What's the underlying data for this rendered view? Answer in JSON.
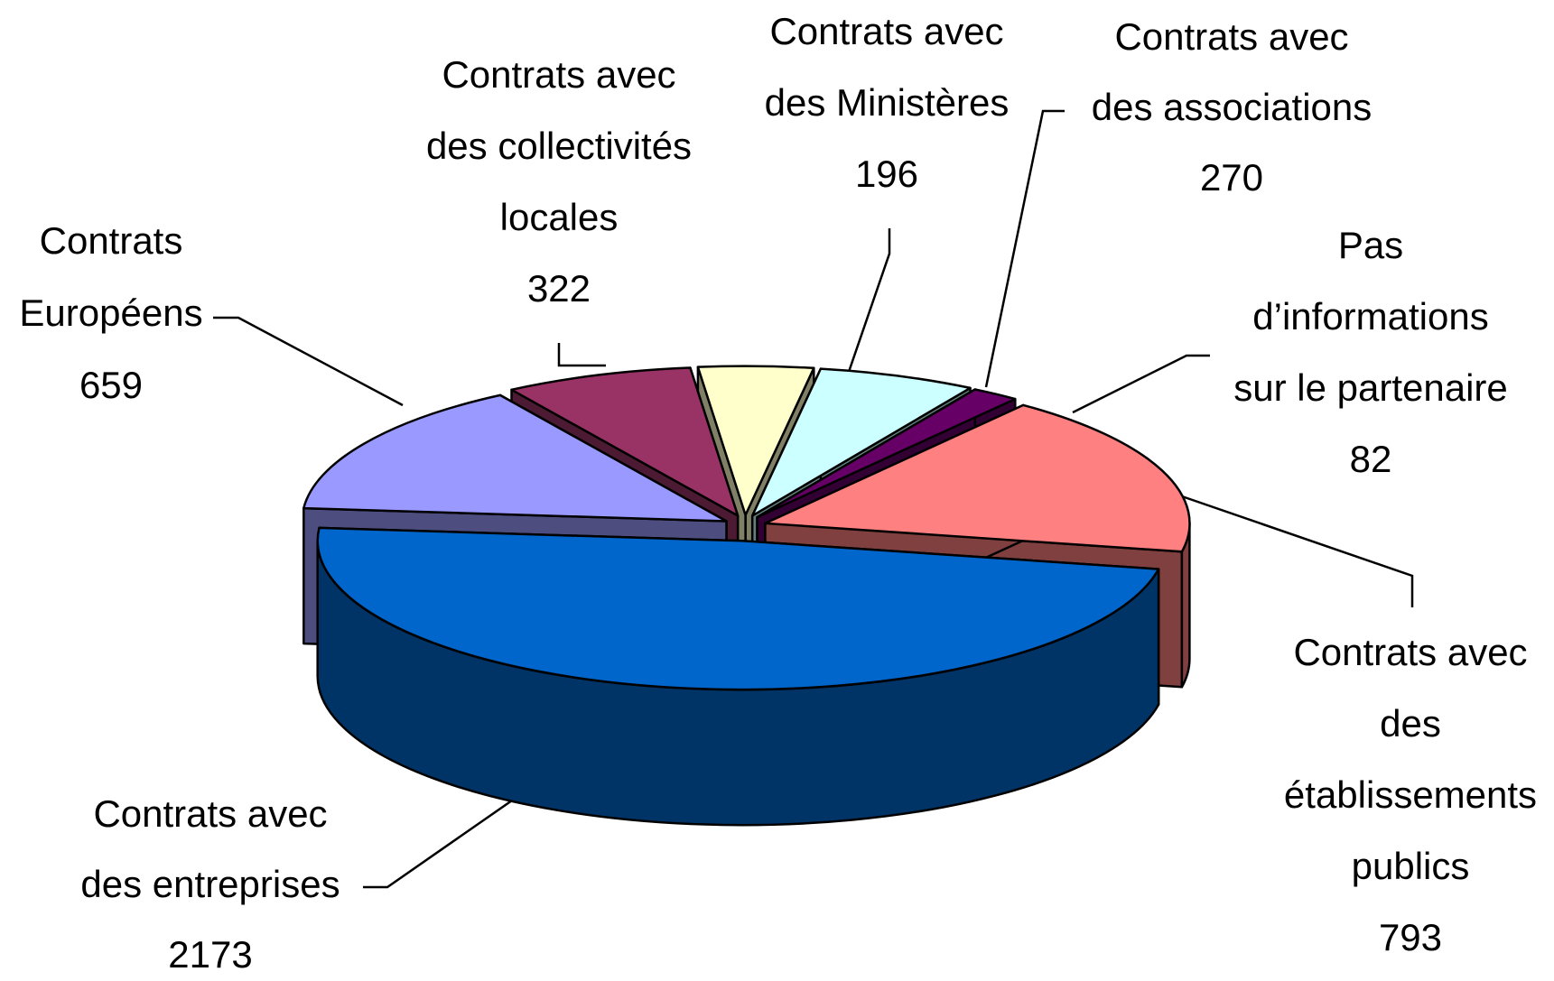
{
  "chart_data": {
    "type": "pie3d",
    "categories": [
      [
        "Contrats avec",
        "des entreprises"
      ],
      [
        "Contrats avec",
        "des",
        "établissements",
        "publics"
      ],
      [
        "Pas",
        "d’informations",
        "sur le partenaire"
      ],
      [
        "Contrats avec",
        "des associations"
      ],
      [
        "Contrats avec",
        "des Ministères"
      ],
      [
        "Contrats avec",
        "des collectivités",
        "locales"
      ],
      [
        "Contrats",
        "Européens"
      ]
    ],
    "values": [
      2173,
      793,
      82,
      270,
      196,
      322,
      659
    ],
    "colors": [
      "#0066cc",
      "#ff8080",
      "#660066",
      "#ccffff",
      "#ffffcc",
      "#993366",
      "#9999ff"
    ]
  }
}
